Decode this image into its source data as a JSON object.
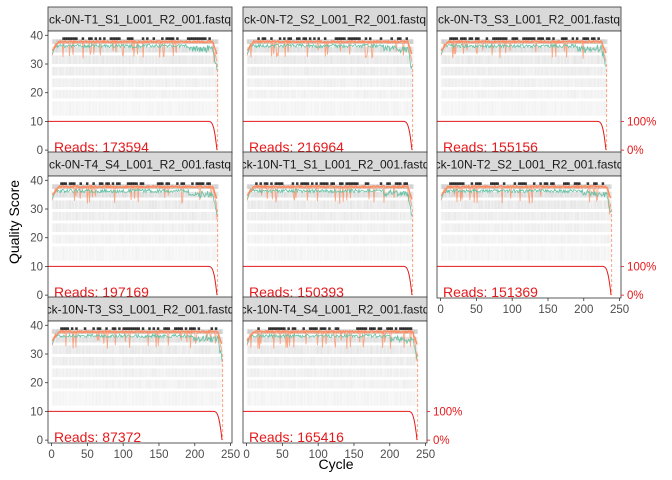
{
  "chart_data": {
    "type": "line",
    "xlabel": "Cycle",
    "ylabel": "Quality Score",
    "xlim": [
      -5,
      252
    ],
    "ylim": [
      -1,
      41.5
    ],
    "x_ticks": [
      0,
      50,
      100,
      150,
      200,
      250
    ],
    "y_ticks": [
      0,
      10,
      20,
      30,
      40
    ],
    "secondary_axis": {
      "labels": [
        "100%",
        "0%"
      ],
      "values": [
        10,
        0
      ]
    },
    "reads_prefix": "Reads:",
    "colors": {
      "heatmap": "#bdbdbd",
      "mean": "#66c2a5",
      "median": "#fc8d62",
      "quartile": "#fc8d62",
      "reads_line": "#e41a1c",
      "strip_fill": "#d9d9d9"
    },
    "panels": [
      {
        "strip": "ck-0N-T1_S1_L001_R2_001.fastq",
        "reads": "173594",
        "cycles": 231
      },
      {
        "strip": "ck-0N-T2_S2_L001_R2_001.fastq",
        "reads": "216964",
        "cycles": 231
      },
      {
        "strip": "ck-0N-T3_S3_L001_R2_001.fastq",
        "reads": "155156",
        "cycles": 231
      },
      {
        "strip": "ck-0N-T4_S4_L001_R2_001.fastq",
        "reads": "197169",
        "cycles": 231
      },
      {
        "strip": "ck-10N-T1_S1_L001_R2_001.fastq",
        "reads": "150393",
        "cycles": 231
      },
      {
        "strip": "ck-10N-T2_S2_L001_R2_001.fastq",
        "reads": "151369",
        "cycles": 238
      },
      {
        "strip": "ck-10N-T3_S3_L001_R2_001.fastq",
        "reads": "87372",
        "cycles": 238
      },
      {
        "strip": "ck-10N-T4_S4_L001_R2_001.fastq",
        "reads": "165416",
        "cycles": 238
      }
    ]
  }
}
